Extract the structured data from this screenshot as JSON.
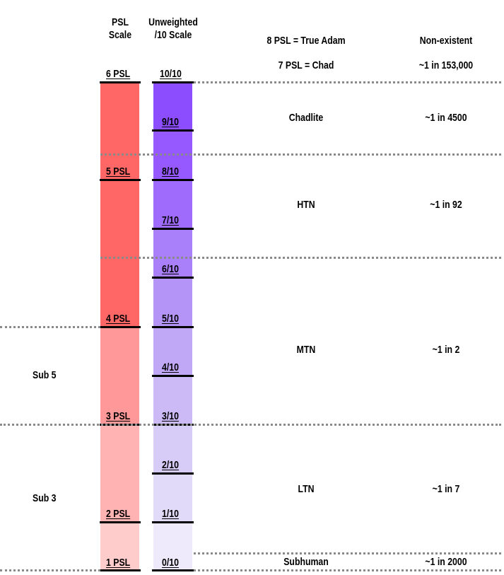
{
  "headers": {
    "psl_line1": "PSL",
    "psl_line2": "Scale",
    "unweighted_line1": "Unweighted",
    "unweighted_line2": "/10 Scale",
    "true_adam": "8 PSL = True Adam",
    "non_existent": "Non-existent",
    "chad": "7 PSL = Chad",
    "chad_rarity": "~1 in 153,000"
  },
  "psl_labels": [
    "6 PSL",
    "5 PSL",
    "4 PSL",
    "3 PSL",
    "2 PSL",
    "1 PSL"
  ],
  "ten_labels": [
    "10/10",
    "9/10",
    "8/10",
    "7/10",
    "6/10",
    "5/10",
    "4/10",
    "3/10",
    "2/10",
    "1/10",
    "0/10"
  ],
  "tiers": [
    {
      "name": "Chadlite",
      "rarity": "~1 in 4500"
    },
    {
      "name": "HTN",
      "rarity": "~1 in 92"
    },
    {
      "name": "MTN",
      "rarity": "~1 in 2"
    },
    {
      "name": "LTN",
      "rarity": "~1 in 7"
    },
    {
      "name": "Subhuman",
      "rarity": "~1 in 2000"
    }
  ],
  "side_labels": [
    "Sub 5",
    "Sub 3"
  ],
  "colors": {
    "psl_high": "#ff6666",
    "psl_mid": "#ff9999",
    "psl_low": "#ffb3b3",
    "psl_bottom": "#ffcccc",
    "purple_top": "#8c4dff",
    "purple_bottom": "#f2edff",
    "divider": "#8a8a8a"
  }
}
